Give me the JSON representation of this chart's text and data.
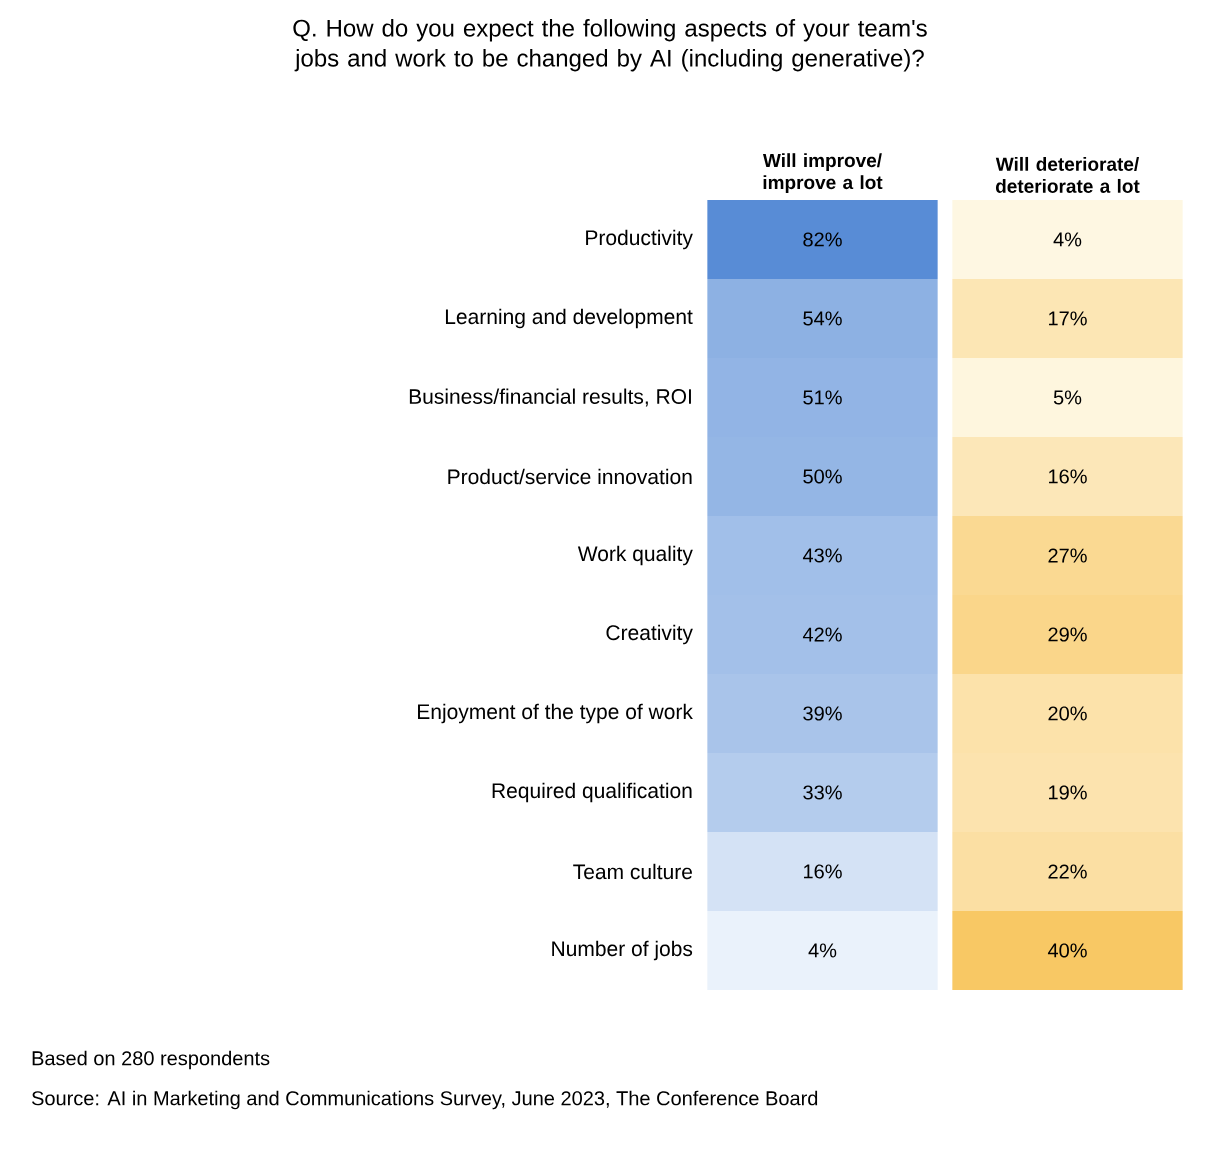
{
  "chart_data": {
    "type": "heatmap",
    "title": "Q. How do you expect the following aspects of your team's jobs and work to be changed by AI (including generative)?",
    "categories": [
      "Will improve/ improve a lot",
      "Will deteriorate/ deteriorate a lot"
    ],
    "y_categories": [
      "Productivity",
      "Learning and development",
      "Business/financial results, ROI",
      "Product/service innovation",
      "Work quality",
      "Creativity",
      "Enjoyment of the type of work",
      "Required qualification",
      "Team culture",
      "Number of jobs"
    ],
    "cells": [
      [
        82,
        4
      ],
      [
        54,
        17
      ],
      [
        51,
        5
      ],
      [
        50,
        16
      ],
      [
        43,
        27
      ],
      [
        42,
        29
      ],
      [
        39,
        20
      ],
      [
        33,
        19
      ],
      [
        16,
        22
      ],
      [
        4,
        40
      ]
    ],
    "cell_labels": [
      [
        "82%",
        "4%"
      ],
      [
        "54%",
        "17%"
      ],
      [
        "51%",
        "5%"
      ],
      [
        "50%",
        "16%"
      ],
      [
        "43%",
        "27%"
      ],
      [
        "42%",
        "29%"
      ],
      [
        "39%",
        "20%"
      ],
      [
        "33%",
        "19%"
      ],
      [
        "16%",
        "22%"
      ],
      [
        "4%",
        "40%"
      ]
    ],
    "annotations": [
      "Based on 280 respondents",
      "Source: AI in Marketing and Communications Survey, June 2023, The Conference Board"
    ]
  }
}
